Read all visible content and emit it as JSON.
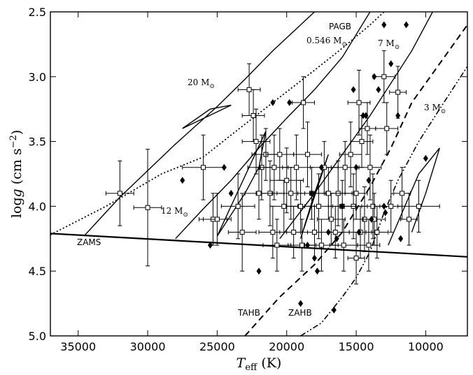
{
  "chart_data": {
    "type": "scatter",
    "title": "",
    "xlabel": {
      "main": "T",
      "sub": "eff",
      "unit": " (K)"
    },
    "ylabel": {
      "main": "log",
      "ital": "g",
      "unit": " (cm s",
      "sup": "−2",
      "close": ")"
    },
    "xlim": [
      37000,
      7000
    ],
    "ylim": [
      5.0,
      2.5
    ],
    "xticks": [
      35000,
      30000,
      25000,
      20000,
      15000,
      10000
    ],
    "yticks": [
      2.5,
      3.0,
      3.5,
      4.0,
      4.5,
      5.0
    ],
    "ytick_labels": [
      "2.5",
      "3.0",
      "3.5",
      "4.0",
      "4.5",
      "5.0"
    ],
    "grid": false,
    "curve_labels": {
      "zams": "ZAMS",
      "pagb": "PAGB",
      "pagb_mass": "0.546 M",
      "m20": "20 M",
      "m12": "12 M",
      "m7": "7 M",
      "m3": "3 M",
      "tahb": "TAHB",
      "zahb": "ZAHB",
      "sun_symbol": "⊙"
    },
    "curves": {
      "zams": [
        [
          37000,
          4.21
        ],
        [
          7000,
          4.39
        ]
      ],
      "pagb": [
        [
          37000,
          4.22
        ],
        [
          33000,
          4.0
        ],
        [
          29000,
          3.75
        ],
        [
          26000,
          3.62
        ],
        [
          24000,
          3.45
        ],
        [
          21000,
          3.2
        ],
        [
          18000,
          2.95
        ],
        [
          16000,
          2.78
        ],
        [
          14000,
          2.6
        ],
        [
          13000,
          2.5
        ]
      ],
      "tahb": [
        [
          23000,
          5.0
        ],
        [
          20500,
          4.7
        ],
        [
          18000,
          4.45
        ],
        [
          16000,
          4.2
        ],
        [
          14000,
          3.85
        ],
        [
          12500,
          3.55
        ],
        [
          11000,
          3.2
        ],
        [
          9000,
          2.9
        ],
        [
          7000,
          2.6
        ]
      ],
      "zahb": [
        [
          19000,
          5.0
        ],
        [
          17500,
          4.9
        ],
        [
          16000,
          4.7
        ],
        [
          15000,
          4.55
        ],
        [
          14000,
          4.35
        ],
        [
          13000,
          4.05
        ],
        [
          12000,
          3.8
        ],
        [
          10500,
          3.5
        ],
        [
          9000,
          3.25
        ],
        [
          7000,
          2.92
        ]
      ],
      "m20": [
        [
          34500,
          4.22
        ],
        [
          32000,
          3.93
        ],
        [
          28000,
          3.52
        ],
        [
          25000,
          3.23
        ],
        [
          23000,
          3.02
        ],
        [
          21000,
          2.8
        ],
        [
          19000,
          2.6
        ],
        [
          18000,
          2.5
        ],
        [
          999,
          999
        ],
        [
          27500,
          3.4
        ],
        [
          25500,
          3.25
        ],
        [
          24000,
          3.22
        ],
        [
          27500,
          3.4
        ]
      ],
      "m12": [
        [
          28000,
          4.25
        ],
        [
          26000,
          4.02
        ],
        [
          24000,
          3.8
        ],
        [
          22000,
          3.55
        ],
        [
          20000,
          3.32
        ],
        [
          18000,
          3.1
        ],
        [
          16000,
          2.85
        ],
        [
          14000,
          2.5
        ],
        [
          999,
          999
        ],
        [
          25000,
          4.23
        ],
        [
          23000,
          3.9
        ],
        [
          22000,
          3.7
        ],
        [
          21500,
          3.42
        ],
        [
          25000,
          4.23
        ]
      ],
      "m7": [
        [
          20500,
          4.25
        ],
        [
          18000,
          3.9
        ],
        [
          16000,
          3.6
        ],
        [
          14000,
          3.3
        ],
        [
          12500,
          3.05
        ],
        [
          11000,
          2.8
        ],
        [
          9500,
          2.5
        ],
        [
          999,
          999
        ],
        [
          19000,
          4.25
        ],
        [
          18000,
          3.9
        ],
        [
          17000,
          3.6
        ],
        [
          19000,
          4.25
        ]
      ],
      "m3": [
        [
          12700,
          4.3
        ],
        [
          11500,
          4.0
        ],
        [
          10500,
          3.75
        ],
        [
          9000,
          3.55
        ],
        [
          10000,
          3.9
        ],
        [
          11000,
          4.2
        ]
      ]
    },
    "series": [
      {
        "marker": "square",
        "points": [
          [
            32000,
            3.9,
            1000,
            0.25
          ],
          [
            30000,
            4.01,
            1000,
            0.45
          ],
          [
            26000,
            3.7,
            1500,
            0.25
          ],
          [
            25300,
            4.1,
            1000,
            0.2
          ],
          [
            25000,
            4.1,
            1000,
            0.2
          ],
          [
            22700,
            3.1,
            800,
            0.2
          ],
          [
            22400,
            3.3,
            800,
            0.2
          ],
          [
            22200,
            3.5,
            1000,
            0.25
          ],
          [
            21800,
            3.7,
            1000,
            0.25
          ],
          [
            21500,
            3.6,
            1000,
            0.2
          ],
          [
            21200,
            3.9,
            1000,
            0.25
          ],
          [
            20900,
            3.7,
            1000,
            0.25
          ],
          [
            20500,
            3.6,
            1000,
            0.2
          ],
          [
            20200,
            4.0,
            1000,
            0.2
          ],
          [
            20000,
            3.8,
            1200,
            0.25
          ],
          [
            19700,
            3.9,
            1000,
            0.2
          ],
          [
            19300,
            3.7,
            1000,
            0.25
          ],
          [
            18800,
            3.2,
            800,
            0.2
          ],
          [
            18500,
            3.6,
            1000,
            0.25
          ],
          [
            18200,
            3.9,
            1000,
            0.2
          ],
          [
            17700,
            4.0,
            1000,
            0.25
          ],
          [
            17300,
            3.7,
            1000,
            0.2
          ],
          [
            16800,
            4.1,
            1000,
            0.2
          ],
          [
            16300,
            3.9,
            1000,
            0.25
          ],
          [
            15800,
            3.7,
            1000,
            0.2
          ],
          [
            15400,
            3.6,
            800,
            0.25
          ],
          [
            15000,
            3.9,
            800,
            0.2
          ],
          [
            14800,
            3.2,
            800,
            0.25
          ],
          [
            14600,
            3.5,
            800,
            0.2
          ],
          [
            14400,
            4.1,
            800,
            0.25
          ],
          [
            14200,
            3.4,
            600,
            0.2
          ],
          [
            14000,
            3.7,
            800,
            0.25
          ],
          [
            13800,
            4.0,
            800,
            0.25
          ],
          [
            13500,
            4.2,
            800,
            0.2
          ],
          [
            13000,
            3.0,
            800,
            0.2
          ],
          [
            12800,
            3.4,
            800,
            0.2
          ],
          [
            12500,
            4.0,
            800,
            0.2
          ],
          [
            12000,
            3.12,
            600,
            0.2
          ],
          [
            11700,
            3.9,
            600,
            0.2
          ],
          [
            11200,
            4.1,
            600,
            0.2
          ],
          [
            10500,
            4.0,
            1500,
            0.2
          ],
          [
            23500,
            4.0,
            1200,
            0.25
          ],
          [
            23200,
            4.2,
            1000,
            0.3
          ],
          [
            21000,
            4.2,
            1000,
            0.2
          ],
          [
            20700,
            4.3,
            1000,
            0.2
          ],
          [
            19500,
            4.2,
            1000,
            0.2
          ],
          [
            18900,
            4.3,
            1000,
            0.2
          ],
          [
            18000,
            4.2,
            1000,
            0.2
          ],
          [
            17500,
            4.3,
            1200,
            0.2
          ],
          [
            16500,
            4.2,
            1000,
            0.2
          ],
          [
            15900,
            4.3,
            1000,
            0.2
          ],
          [
            15200,
            4.0,
            1000,
            0.25
          ],
          [
            15000,
            4.4,
            600,
            0.2
          ],
          [
            14700,
            4.2,
            800,
            0.2
          ],
          [
            14100,
            4.3,
            800,
            0.2
          ],
          [
            13700,
            4.1,
            800,
            0.2
          ],
          [
            16000,
            4.0,
            1000,
            0.2
          ],
          [
            17000,
            3.9,
            1000,
            0.2
          ],
          [
            19000,
            4.0,
            1000,
            0.2
          ],
          [
            22000,
            3.9,
            1000,
            0.2
          ]
        ]
      },
      {
        "marker": "diamond",
        "points": [
          [
            27500,
            3.8
          ],
          [
            25500,
            4.3
          ],
          [
            24500,
            3.7
          ],
          [
            24000,
            3.9
          ],
          [
            22000,
            4.5
          ],
          [
            21000,
            3.2
          ],
          [
            19800,
            3.2
          ],
          [
            19000,
            4.75
          ],
          [
            18500,
            4.3
          ],
          [
            18200,
            3.9
          ],
          [
            18000,
            4.4
          ],
          [
            17800,
            4.5
          ],
          [
            17500,
            3.7
          ],
          [
            17000,
            4.2
          ],
          [
            16600,
            4.8
          ],
          [
            16400,
            4.25
          ],
          [
            16000,
            4.0
          ],
          [
            15200,
            3.1
          ],
          [
            15000,
            3.7
          ],
          [
            14800,
            4.2
          ],
          [
            14500,
            3.3
          ],
          [
            14300,
            3.3
          ],
          [
            13700,
            3.0
          ],
          [
            13400,
            3.1
          ],
          [
            13000,
            4.0
          ],
          [
            12900,
            4.05
          ],
          [
            12500,
            2.9
          ],
          [
            12000,
            3.3
          ],
          [
            11800,
            4.25
          ],
          [
            11400,
            2.6
          ],
          [
            13000,
            2.6
          ],
          [
            10000,
            3.63
          ],
          [
            13900,
            4.1
          ],
          [
            14100,
            3.8
          ]
        ]
      }
    ]
  }
}
